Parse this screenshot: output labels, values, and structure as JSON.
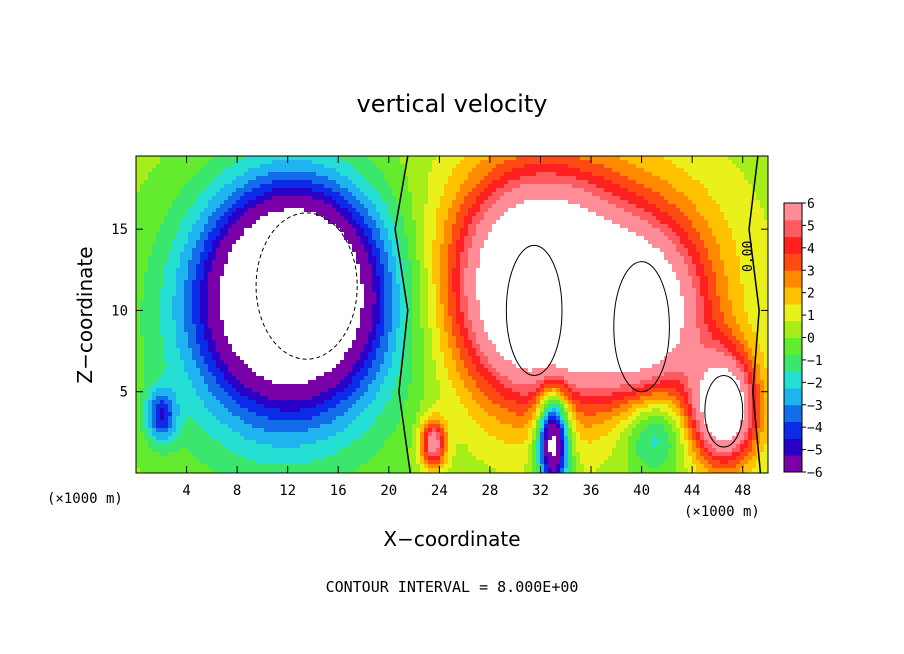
{
  "chart_data": {
    "type": "heatmap",
    "title": "vertical velocity",
    "xlabel": "X−coordinate",
    "ylabel": "Z−coordinate",
    "x_unit_left": "(×1000 m)",
    "x_unit_right": "(×1000 m)",
    "footer": "CONTOUR INTERVAL = 8.000E+00",
    "contour_label": "0.00",
    "xlim": [
      0,
      50
    ],
    "ylim": [
      0,
      19.5
    ],
    "x_ticks": [
      4,
      8,
      12,
      16,
      20,
      24,
      28,
      32,
      36,
      40,
      44,
      48
    ],
    "y_ticks": [
      5,
      10,
      15
    ],
    "colorbar": {
      "min": -6,
      "max": 6,
      "ticks": [
        "6",
        "5",
        "4",
        "3",
        "2",
        "1",
        "0",
        "−1",
        "−2",
        "−3",
        "−4",
        "−5",
        "−6"
      ],
      "colors": [
        "#7a00a8",
        "#2a00c8",
        "#0b2be8",
        "#146de8",
        "#1fb3f0",
        "#25dfd5",
        "#3be66f",
        "#63ec2f",
        "#a6ee19",
        "#eaf01a",
        "#ffc000",
        "#ff8a00",
        "#ff4a14",
        "#ff2020",
        "#ff5a60",
        "#ff8c96"
      ]
    },
    "features": [
      {
        "kind": "downdraft",
        "x": 12.5,
        "z": 11.5,
        "peak": -6
      },
      {
        "kind": "updraft",
        "x": 31.5,
        "z": 10.0,
        "peak": 6
      },
      {
        "kind": "updraft",
        "x": 40.0,
        "z": 9.0,
        "peak": 6
      },
      {
        "kind": "updraft",
        "x": 46.5,
        "z": 3.8,
        "peak": 6
      },
      {
        "kind": "downdraft",
        "x": 33.0,
        "z": 1.5,
        "peak": -5
      }
    ]
  }
}
